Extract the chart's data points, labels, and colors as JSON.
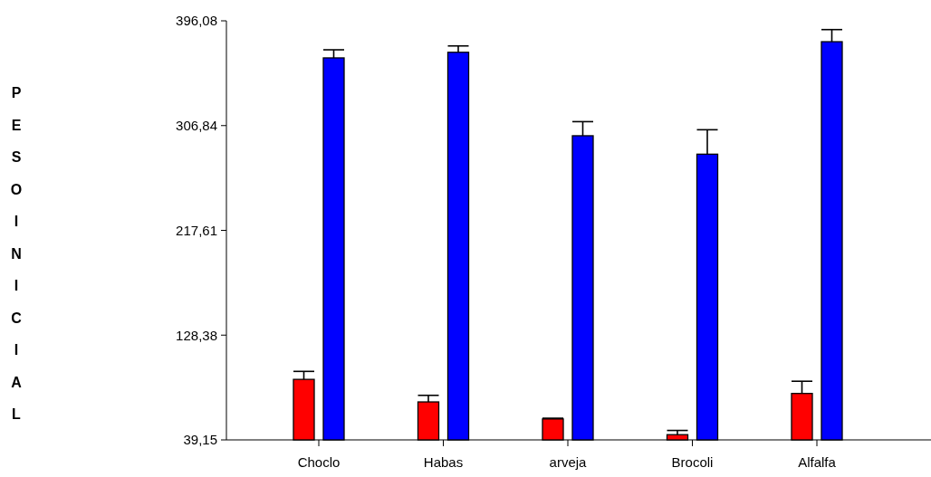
{
  "chart_data": {
    "type": "bar",
    "ylabel": "PESO INICIAL",
    "categories": [
      "Choclo",
      "Habas",
      "arveja",
      "Brocoli",
      "Alfalfa"
    ],
    "series": [
      {
        "color": "#ff0000",
        "values": [
          90.7,
          71.5,
          57.0,
          43.6,
          78.7
        ],
        "errors": [
          6.8,
          5.6,
          0.6,
          3.6,
          10.4
        ]
      },
      {
        "color": "#0000ff",
        "values": [
          364.5,
          369.3,
          298.2,
          282.5,
          378.3
        ],
        "errors": [
          6.9,
          5.4,
          12,
          20.8,
          10.3
        ]
      }
    ],
    "ylim": [
      39.15,
      396.08
    ],
    "yticks": [
      {
        "value": 39.15,
        "label": "39,15"
      },
      {
        "value": 128.38,
        "label": "128,38"
      },
      {
        "value": 217.61,
        "label": "217,61"
      },
      {
        "value": 306.84,
        "label": "306,84"
      },
      {
        "value": 396.08,
        "label": "396,08"
      }
    ],
    "grid": false
  }
}
